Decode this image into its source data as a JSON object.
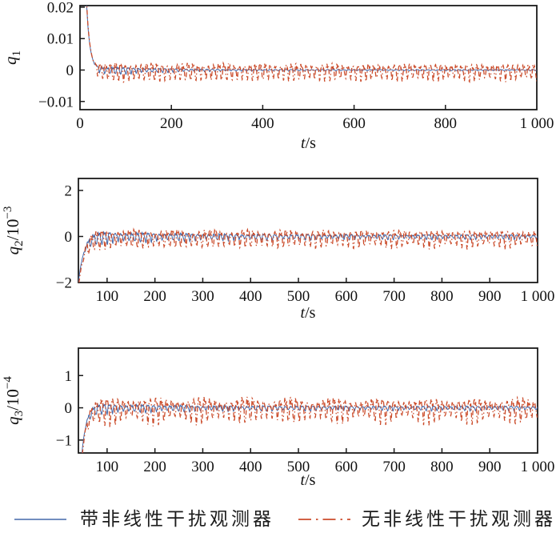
{
  "figure": {
    "background": "#ffffff",
    "frame_color": "#1a1a1a",
    "legend": {
      "items": [
        {
          "label": "带非线性干扰观测器",
          "color": "#4468aa",
          "style": "solid"
        },
        {
          "label": "无非线性干扰观测器",
          "color": "#cb4c2b",
          "style": "dashdot"
        }
      ]
    }
  },
  "chart_data": [
    {
      "type": "line",
      "id": "q1",
      "xlabel": {
        "var": "t",
        "unit": "s"
      },
      "ylabel": {
        "var": "q",
        "sub": "1",
        "scale_num": null,
        "scale_exp": null
      },
      "xlim": [
        0,
        1000
      ],
      "ylim": [
        -0.0126,
        0.0205
      ],
      "grid": false,
      "xticks": {
        "values": [
          0,
          200,
          400,
          600,
          800,
          1000
        ],
        "labels": [
          "0",
          "200",
          "400",
          "600",
          "800",
          "1 000"
        ]
      },
      "yticks": {
        "values": [
          0.02,
          0.01,
          0,
          -0.01
        ],
        "labels": [
          "0.02",
          "0.01",
          "0",
          "−0.01"
        ]
      },
      "series": [
        {
          "name": "带非线性干扰观测器",
          "color": "#4066a8",
          "style": "solid",
          "width": 1.0,
          "initial_value": 0.02,
          "settles_to": 0,
          "settle_time_s": 60,
          "steady_amplitude": 0.0003,
          "gen": {
            "sign": 1,
            "v0": 0.022,
            "t0": 14,
            "tau": 7.5,
            "bias": 0,
            "t_start": 12,
            "osc_on": 30,
            "ramp": 15,
            "amp0": 0.0013,
            "amp_inf": 0.00015,
            "amp_tau": 120,
            "T": 11.5,
            "mod_depth": 0.2,
            "mod_T": 90,
            "phase": 0.3
          }
        },
        {
          "name": "无非线性干扰观测器",
          "color": "#cb4c2b",
          "style": "dashdot",
          "width": 1.3,
          "initial_value": 0.02,
          "settles_to": 0,
          "settle_time_s": 60,
          "steady_amplitude": 0.003,
          "gen": {
            "sign": 1,
            "v0": 0.023,
            "t0": 14,
            "tau": 7.8,
            "bias": -0.0003,
            "t_start": 12,
            "osc_on": 28,
            "ramp": 12,
            "amp0": 0.0022,
            "amp_inf": 0.0019,
            "amp_tau": 300,
            "T": 11.3,
            "mod_depth": 0.15,
            "mod_T": 77,
            "phase": 2.1
          }
        }
      ]
    },
    {
      "type": "line",
      "id": "q2",
      "xlabel": {
        "var": "t",
        "unit": "s"
      },
      "ylabel": {
        "var": "q",
        "sub": "2",
        "scale_num": "10",
        "scale_exp": "−3"
      },
      "xlim": [
        40,
        1000
      ],
      "ylim": [
        -2,
        2.52
      ],
      "grid": false,
      "xticks": {
        "values": [
          100,
          200,
          300,
          400,
          500,
          600,
          700,
          800,
          900,
          1000
        ],
        "labels": [
          "100",
          "200",
          "300",
          "400",
          "500",
          "600",
          "700",
          "800",
          "900",
          "1 000"
        ]
      },
      "yticks": {
        "values": [
          2,
          0,
          -2
        ],
        "labels": [
          "2",
          "0",
          "−2"
        ]
      },
      "series": [
        {
          "name": "带非线性干扰观测器",
          "color": "#4066a8",
          "style": "solid",
          "width": 1.0,
          "initial_value": -2,
          "settles_to": 0,
          "settle_time_s": 70,
          "steady_amplitude": 0.08,
          "gen": {
            "sign": -1,
            "v0": 5.0,
            "t0": 30,
            "tau": 11,
            "bias": 0,
            "t_start": 33,
            "osc_on": 48,
            "ramp": 15,
            "amp0": 0.22,
            "amp_inf": 0.07,
            "amp_tau": 200,
            "T": 11.5,
            "mod_depth": 0.25,
            "mod_T": 85,
            "phase": 0.3
          }
        },
        {
          "name": "无非线性干扰观测器",
          "color": "#cb4c2b",
          "style": "dashdot",
          "width": 1.3,
          "initial_value": -2,
          "settles_to": 0,
          "settle_time_s": 70,
          "steady_amplitude": 0.45,
          "gen": {
            "sign": -1,
            "v0": 5.2,
            "t0": 30,
            "tau": 11.5,
            "bias": -0.05,
            "t_start": 33,
            "osc_on": 46,
            "ramp": 12,
            "amp0": 0.3,
            "amp_inf": 0.26,
            "amp_tau": 300,
            "T": 11.3,
            "mod_depth": 0.2,
            "mod_T": 77,
            "phase": 2.0
          }
        }
      ]
    },
    {
      "type": "line",
      "id": "q3",
      "xlabel": {
        "var": "t",
        "unit": "s"
      },
      "ylabel": {
        "var": "q",
        "sub": "3",
        "scale_num": "10",
        "scale_exp": "−4"
      },
      "xlim": [
        40,
        1000
      ],
      "ylim": [
        -1.4,
        1.85
      ],
      "grid": false,
      "xticks": {
        "values": [
          100,
          200,
          300,
          400,
          500,
          600,
          700,
          800,
          900,
          1000
        ],
        "labels": [
          "100",
          "200",
          "300",
          "400",
          "500",
          "600",
          "700",
          "800",
          "900",
          "1 000"
        ]
      },
      "yticks": {
        "values": [
          1,
          0,
          -1
        ],
        "labels": [
          "1",
          "0",
          "−1"
        ]
      },
      "series": [
        {
          "name": "带非线性干扰观测器",
          "color": "#4066a8",
          "style": "solid",
          "width": 1.0,
          "initial_value": -1.4,
          "settles_to": 0,
          "settle_time_s": 75,
          "steady_amplitude": 0.06,
          "gen": {
            "sign": -1,
            "v0": 4.0,
            "t0": 38,
            "tau": 9,
            "bias": 0,
            "t_start": 40,
            "osc_on": 52,
            "ramp": 12,
            "amp0": 0.13,
            "amp_inf": 0.05,
            "amp_tau": 150,
            "T": 11.5,
            "mod_depth": 0.25,
            "mod_T": 85,
            "phase": 0.6
          }
        },
        {
          "name": "无非线性干扰观测器",
          "color": "#cb4c2b",
          "style": "dashdot",
          "width": 1.3,
          "initial_value": -1.4,
          "settles_to": 0,
          "settle_time_s": 75,
          "steady_amplitude": 0.42,
          "gen": {
            "sign": -1,
            "v0": 4.2,
            "t0": 38,
            "tau": 9.5,
            "bias": -0.02,
            "t_start": 40,
            "osc_on": 50,
            "ramp": 10,
            "amp0": 0.28,
            "amp_inf": 0.25,
            "amp_tau": 300,
            "T": 11.3,
            "mod_depth": 0.3,
            "mod_T": 95,
            "phase": 2.4
          }
        }
      ]
    }
  ]
}
